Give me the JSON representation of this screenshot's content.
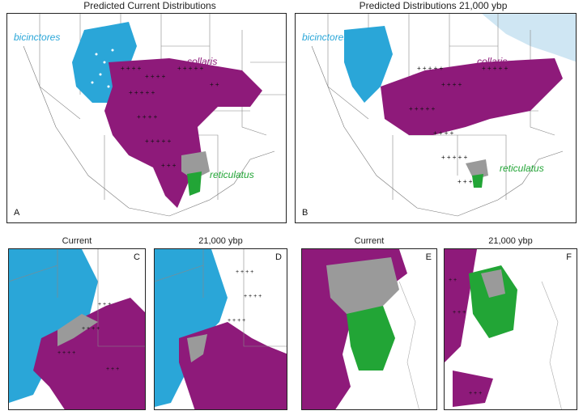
{
  "titles": {
    "top_left": "Predicted Current Distributions",
    "top_right": "Predicted Distributions 21,000 ybp",
    "c": "Current",
    "d": "21,000 ybp",
    "e": "Current",
    "f": "21,000 ybp"
  },
  "panels": {
    "a": "A",
    "b": "B",
    "c": "C",
    "d": "D",
    "e": "E",
    "f": "F"
  },
  "species": {
    "bicinctores": "bicinctores",
    "collaris": "collaris",
    "reticulatus": "reticulatus"
  },
  "colors": {
    "bicinctores": "#2aa6d8",
    "collaris": "#8e1a7a",
    "reticulatus": "#22a536",
    "overlap": "#9a9a9a",
    "ice": "#cfe6f3"
  }
}
